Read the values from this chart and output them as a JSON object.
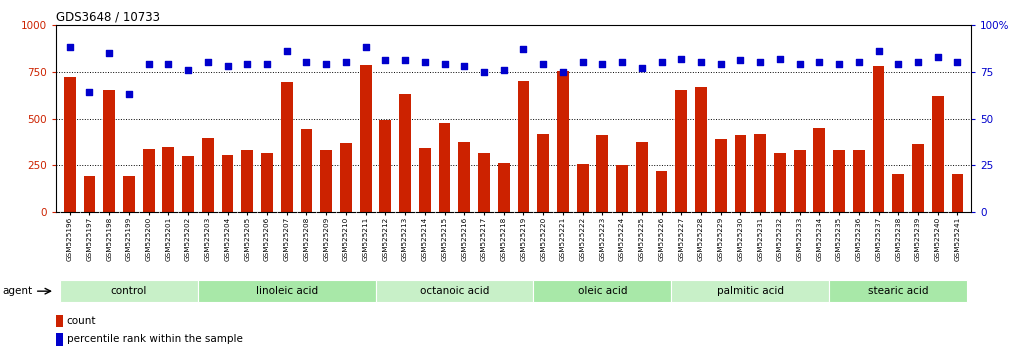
{
  "title": "GDS3648 / 10733",
  "samples": [
    "GSM525196",
    "GSM525197",
    "GSM525198",
    "GSM525199",
    "GSM525200",
    "GSM525201",
    "GSM525202",
    "GSM525203",
    "GSM525204",
    "GSM525205",
    "GSM525206",
    "GSM525207",
    "GSM525208",
    "GSM525209",
    "GSM525210",
    "GSM525211",
    "GSM525212",
    "GSM525213",
    "GSM525214",
    "GSM525215",
    "GSM525216",
    "GSM525217",
    "GSM525218",
    "GSM525219",
    "GSM525220",
    "GSM525221",
    "GSM525222",
    "GSM525223",
    "GSM525224",
    "GSM525225",
    "GSM525226",
    "GSM525227",
    "GSM525228",
    "GSM525229",
    "GSM525230",
    "GSM525231",
    "GSM525232",
    "GSM525233",
    "GSM525234",
    "GSM525235",
    "GSM525236",
    "GSM525237",
    "GSM525238",
    "GSM525239",
    "GSM525240",
    "GSM525241"
  ],
  "bar_values": [
    720,
    195,
    650,
    195,
    340,
    350,
    300,
    395,
    305,
    330,
    315,
    695,
    445,
    330,
    370,
    785,
    490,
    630,
    345,
    475,
    375,
    315,
    265,
    700,
    420,
    755,
    260,
    415,
    255,
    375,
    220,
    655,
    670,
    390,
    415,
    420,
    315,
    335,
    450,
    330,
    335,
    780,
    205,
    365,
    620,
    205
  ],
  "dot_values": [
    88,
    64,
    85,
    63,
    79,
    79,
    76,
    80,
    78,
    79,
    79,
    86,
    80,
    79,
    80,
    88,
    81,
    81,
    80,
    79,
    78,
    75,
    76,
    87,
    79,
    75,
    80,
    79,
    80,
    77,
    80,
    82,
    80,
    79,
    81,
    80,
    82,
    79,
    80,
    79,
    80,
    86,
    79,
    80,
    83,
    80
  ],
  "groups": [
    {
      "label": "control",
      "start": 0,
      "end": 7
    },
    {
      "label": "linoleic acid",
      "start": 7,
      "end": 16
    },
    {
      "label": "octanoic acid",
      "start": 16,
      "end": 24
    },
    {
      "label": "oleic acid",
      "start": 24,
      "end": 31
    },
    {
      "label": "palmitic acid",
      "start": 31,
      "end": 39
    },
    {
      "label": "stearic acid",
      "start": 39,
      "end": 46
    }
  ],
  "bar_color": "#cc2200",
  "dot_color": "#0000cc",
  "ylim_left": [
    0,
    1000
  ],
  "ylim_right": [
    0,
    100
  ],
  "yticks_left": [
    0,
    250,
    500,
    750,
    1000
  ],
  "ytick_labels_left": [
    "0",
    "250",
    "500",
    "750",
    "1000"
  ],
  "yticks_right": [
    0,
    25,
    50,
    75,
    100
  ],
  "ytick_labels_right": [
    "0",
    "25",
    "50",
    "75",
    "100%"
  ],
  "group_colors": [
    "#c8f0c8",
    "#a8e8a8",
    "#c8f0c8",
    "#a8e8a8",
    "#c8f0c8",
    "#a8e8a8"
  ],
  "agent_label": "agent"
}
